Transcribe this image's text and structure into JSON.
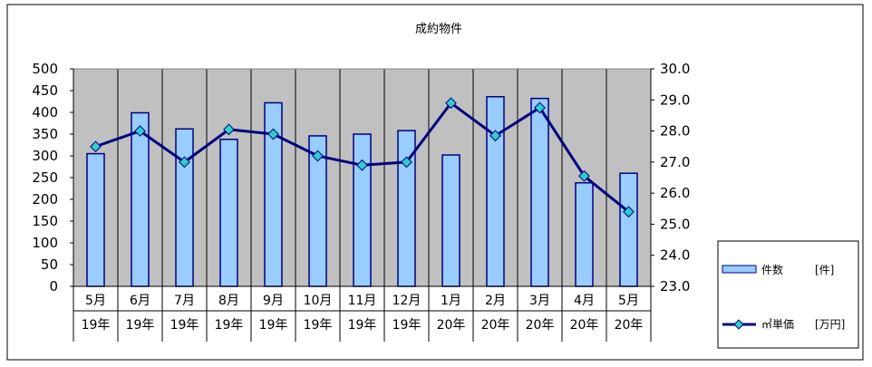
{
  "chart_data": {
    "type": "bar",
    "title": "成約物件",
    "categories": [
      "5月",
      "6月",
      "7月",
      "8月",
      "9月",
      "10月",
      "11月",
      "12月",
      "1月",
      "2月",
      "3月",
      "4月",
      "5月"
    ],
    "years": [
      "19年",
      "19年",
      "19年",
      "19年",
      "19年",
      "19年",
      "19年",
      "19年",
      "20年",
      "20年",
      "20年",
      "20年",
      "20年"
    ],
    "series": [
      {
        "name": "件数",
        "unit": "[件]",
        "type": "bar",
        "axis": "left",
        "values": [
          305,
          399,
          362,
          338,
          422,
          346,
          350,
          358,
          302,
          436,
          432,
          238,
          260
        ],
        "color": "#99ccff",
        "stroke": "#000080"
      },
      {
        "name": "㎡単価",
        "unit": "[万円]",
        "type": "line",
        "axis": "right",
        "values": [
          27.5,
          28.0,
          27.0,
          28.05,
          27.9,
          27.2,
          26.9,
          27.0,
          28.9,
          27.85,
          28.75,
          26.55,
          25.4
        ],
        "color": "#000080",
        "marker": "#33cccc"
      }
    ],
    "ylim_left": [
      0,
      500
    ],
    "yticks_left": [
      "0",
      "50",
      "100",
      "150",
      "200",
      "250",
      "300",
      "350",
      "400",
      "450",
      "500"
    ],
    "ylim_right": [
      23.0,
      30.0
    ],
    "yticks_right": [
      "23.0",
      "24.0",
      "25.0",
      "26.0",
      "27.0",
      "28.0",
      "29.0",
      "30.0"
    ],
    "plot_background": "#c0c0c0",
    "legend": "right"
  }
}
